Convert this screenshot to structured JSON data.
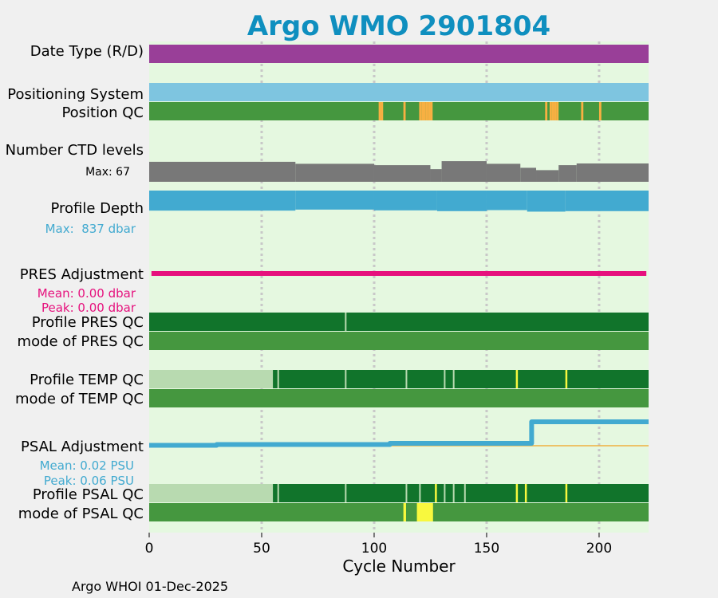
{
  "chart_data": {
    "type": "timeline",
    "title": "Argo WMO 2901804",
    "xlabel": "Cycle Number",
    "xlim": [
      0,
      222
    ],
    "xticks": [
      0,
      50,
      100,
      150,
      200
    ],
    "footer": "Argo WHOI 01-Dec-2025",
    "colors": {
      "title": "#0f8fbf",
      "background": "#e5f8e0",
      "date_type": "#993f98",
      "positioning": "#7ec5e0",
      "qc_good": "#45973f",
      "qc_dark": "#11742b",
      "qc_light": "#b8dab0",
      "qc_orange": "#f8b042",
      "qc_yellow": "#f8f83e",
      "ctd": "#787878",
      "depth": "#42aad0",
      "pres_adj": "#e6117d",
      "psal_adj": "#42aad0",
      "psal_zero": "#f0b040",
      "grid": "#c8c8c8"
    },
    "rows": {
      "date_type": {
        "label": "Date Type (R/D)"
      },
      "positioning": {
        "label": "Positioning System"
      },
      "position_qc": {
        "label": "Position QC",
        "flag_cycles": [
          102,
          103,
          113,
          120,
          121,
          122,
          123,
          124,
          125,
          176,
          178,
          179,
          180,
          181,
          192,
          200
        ]
      },
      "ctd_levels": {
        "label": "Number CTD levels",
        "max_label": "Max: 67",
        "max": 67,
        "segments": [
          {
            "from": 0,
            "to": 65,
            "value": 60
          },
          {
            "from": 65,
            "to": 100,
            "value": 54
          },
          {
            "from": 100,
            "to": 125,
            "value": 50
          },
          {
            "from": 125,
            "to": 130,
            "value": 38
          },
          {
            "from": 130,
            "to": 150,
            "value": 62
          },
          {
            "from": 150,
            "to": 165,
            "value": 54
          },
          {
            "from": 165,
            "to": 172,
            "value": 42
          },
          {
            "from": 172,
            "to": 182,
            "value": 35
          },
          {
            "from": 182,
            "to": 190,
            "value": 50
          },
          {
            "from": 190,
            "to": 222,
            "value": 55
          }
        ]
      },
      "profile_depth": {
        "label": "Profile Depth",
        "max_label": "Max:  837 dbar",
        "max": 837,
        "segments": [
          {
            "from": 0,
            "to": 65,
            "value": 780
          },
          {
            "from": 65,
            "to": 100,
            "value": 740
          },
          {
            "from": 100,
            "to": 128,
            "value": 770
          },
          {
            "from": 128,
            "to": 150,
            "value": 800
          },
          {
            "from": 150,
            "to": 168,
            "value": 760
          },
          {
            "from": 168,
            "to": 185,
            "value": 820
          },
          {
            "from": 185,
            "to": 222,
            "value": 800
          }
        ]
      },
      "pres_adjustment": {
        "label": "PRES Adjustment",
        "mean_label": "Mean: 0.00 dbar",
        "peak_label": "Peak: 0.00 dbar",
        "value": 0.0
      },
      "profile_pres_qc": {
        "label": "Profile PRES QC",
        "light_cycles": [
          87
        ]
      },
      "mode_pres_qc": {
        "label": "mode of PRES QC"
      },
      "profile_temp_qc": {
        "label": "Profile TEMP QC",
        "light_until": 55,
        "light_cycles": [
          57,
          87,
          114,
          131,
          135
        ],
        "yellow_cycles": [
          163,
          185
        ]
      },
      "mode_temp_qc": {
        "label": "mode of TEMP QC"
      },
      "psal_adjustment": {
        "label": "PSAL Adjustment",
        "mean_label": "Mean: 0.02 PSU",
        "peak_label": "Peak: 0.06 PSU",
        "peak": 0.06,
        "series": [
          {
            "from": 0,
            "to": 30,
            "value": 0.001
          },
          {
            "from": 30,
            "to": 107,
            "value": 0.003
          },
          {
            "from": 107,
            "to": 170,
            "value": 0.006
          },
          {
            "from": 170,
            "to": 172,
            "value": 0.06
          },
          {
            "from": 172,
            "to": 222,
            "value": 0.06
          }
        ]
      },
      "profile_psal_qc": {
        "label": "Profile PSAL QC",
        "light_until": 55,
        "light_cycles": [
          57,
          87,
          114,
          120,
          131,
          135,
          140
        ],
        "yellow_cycles": [
          127,
          163,
          167,
          185
        ]
      },
      "mode_psal_qc": {
        "label": "mode of PSAL QC",
        "yellow_cycles": [
          113,
          119,
          120,
          121,
          122,
          123,
          124,
          125
        ]
      }
    }
  }
}
